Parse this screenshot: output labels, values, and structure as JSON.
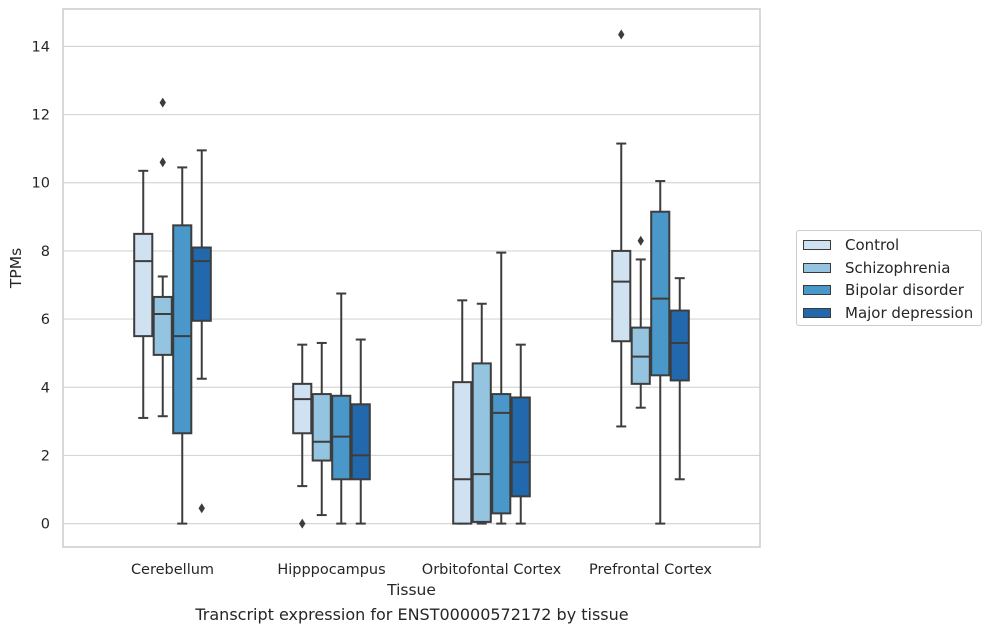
{
  "chart_data": {
    "type": "box",
    "title": "",
    "caption": "Transcript expression for ENST00000572172 by tissue",
    "xlabel": "Tissue",
    "ylabel": "TPMs",
    "ylim": [
      -0.7,
      15.1
    ],
    "yticks": [
      0,
      2,
      4,
      6,
      8,
      10,
      12,
      14
    ],
    "grid": "horizontal",
    "legend_position": "right",
    "categories": [
      "Cerebellum",
      "Hipppocampus",
      "Orbitofontal Cortex",
      "Prefrontal Cortex"
    ],
    "series": [
      {
        "name": "Control",
        "color": "#d0e1f2",
        "boxes": [
          {
            "whisker_low": 3.1,
            "q1": 5.5,
            "median": 7.7,
            "q3": 8.5,
            "whisker_high": 10.35,
            "outliers": []
          },
          {
            "whisker_low": 1.1,
            "q1": 2.65,
            "median": 3.65,
            "q3": 4.1,
            "whisker_high": 5.25,
            "outliers": [
              0.0
            ]
          },
          {
            "whisker_low": 0.0,
            "q1": 0.0,
            "median": 1.3,
            "q3": 4.15,
            "whisker_high": 6.55,
            "outliers": []
          },
          {
            "whisker_low": 2.85,
            "q1": 5.35,
            "median": 7.1,
            "q3": 8.0,
            "whisker_high": 11.15,
            "outliers": [
              14.35
            ]
          }
        ]
      },
      {
        "name": "Schizophrenia",
        "color": "#94c4df",
        "boxes": [
          {
            "whisker_low": 3.15,
            "q1": 4.95,
            "median": 6.15,
            "q3": 6.65,
            "whisker_high": 7.25,
            "outliers": [
              10.6,
              12.35
            ]
          },
          {
            "whisker_low": 0.25,
            "q1": 1.85,
            "median": 2.4,
            "q3": 3.8,
            "whisker_high": 5.3,
            "outliers": []
          },
          {
            "whisker_low": 0.0,
            "q1": 0.05,
            "median": 1.45,
            "q3": 4.7,
            "whisker_high": 6.45,
            "outliers": []
          },
          {
            "whisker_low": 3.4,
            "q1": 4.1,
            "median": 4.9,
            "q3": 5.75,
            "whisker_high": 7.75,
            "outliers": [
              8.3
            ]
          }
        ]
      },
      {
        "name": "Bipolar disorder",
        "color": "#4a98c9",
        "boxes": [
          {
            "whisker_low": 0.0,
            "q1": 2.65,
            "median": 5.5,
            "q3": 8.75,
            "whisker_high": 10.45,
            "outliers": []
          },
          {
            "whisker_low": 0.0,
            "q1": 1.3,
            "median": 2.55,
            "q3": 3.75,
            "whisker_high": 6.75,
            "outliers": []
          },
          {
            "whisker_low": 0.0,
            "q1": 0.3,
            "median": 3.25,
            "q3": 3.8,
            "whisker_high": 7.95,
            "outliers": []
          },
          {
            "whisker_low": 0.0,
            "q1": 4.35,
            "median": 6.6,
            "q3": 9.15,
            "whisker_high": 10.05,
            "outliers": []
          }
        ]
      },
      {
        "name": "Major depression",
        "color": "#2268ad",
        "boxes": [
          {
            "whisker_low": 4.25,
            "q1": 5.95,
            "median": 7.7,
            "q3": 8.1,
            "whisker_high": 10.95,
            "outliers": [
              0.45
            ]
          },
          {
            "whisker_low": 0.0,
            "q1": 1.3,
            "median": 2.0,
            "q3": 3.5,
            "whisker_high": 5.4,
            "outliers": []
          },
          {
            "whisker_low": 0.0,
            "q1": 0.8,
            "median": 1.8,
            "q3": 3.7,
            "whisker_high": 5.25,
            "outliers": []
          },
          {
            "whisker_low": 1.3,
            "q1": 4.2,
            "median": 5.3,
            "q3": 6.25,
            "whisker_high": 7.2,
            "outliers": []
          }
        ]
      }
    ]
  }
}
